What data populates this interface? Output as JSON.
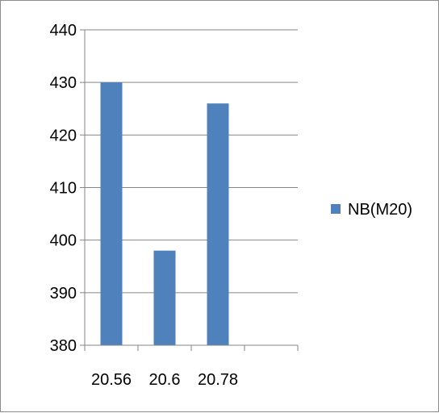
{
  "chart_data": {
    "type": "bar",
    "categories": [
      "20.56",
      "20.6",
      "20.78"
    ],
    "series": [
      {
        "name": "NB(M20)",
        "values": [
          430,
          398,
          426
        ]
      }
    ],
    "ylim": [
      380,
      440
    ],
    "yticks": [
      380,
      390,
      400,
      410,
      420,
      430,
      440
    ],
    "x_slots": 4,
    "grid": true,
    "legend_position": "right",
    "bar_color": "#4f81bd",
    "grid_color": "#868686",
    "title": "",
    "xlabel": "",
    "ylabel": ""
  }
}
